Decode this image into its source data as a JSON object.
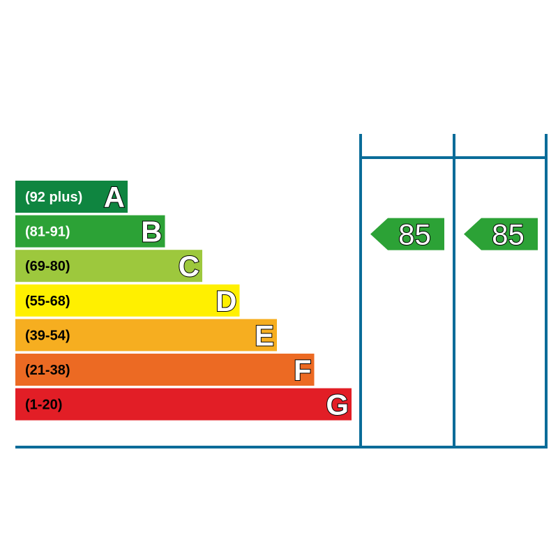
{
  "chart_data": {
    "type": "bar",
    "categories": [
      "A",
      "B",
      "C",
      "D",
      "E",
      "F",
      "G"
    ],
    "bands": [
      {
        "letter": "A",
        "range": "(92 plus)",
        "color": "#0f8540",
        "text_color": "#ffffff"
      },
      {
        "letter": "B",
        "range": "(81-91)",
        "color": "#2ca236",
        "text_color": "#ffffff"
      },
      {
        "letter": "C",
        "range": "(69-80)",
        "color": "#9dc83d",
        "text_color": "#000000"
      },
      {
        "letter": "D",
        "range": "(55-68)",
        "color": "#fff000",
        "text_color": "#000000"
      },
      {
        "letter": "E",
        "range": "(39-54)",
        "color": "#f6ae20",
        "text_color": "#000000"
      },
      {
        "letter": "F",
        "range": "(21-38)",
        "color": "#ec6a23",
        "text_color": "#000000"
      },
      {
        "letter": "G",
        "range": "(1-20)",
        "color": "#e21e26",
        "text_color": "#000000"
      }
    ],
    "ratings": [
      {
        "value": "85",
        "band": "B",
        "color": "#2ca236"
      },
      {
        "value": "85",
        "band": "B",
        "color": "#2ca236"
      }
    ],
    "frame_color": "#0a6c99"
  }
}
